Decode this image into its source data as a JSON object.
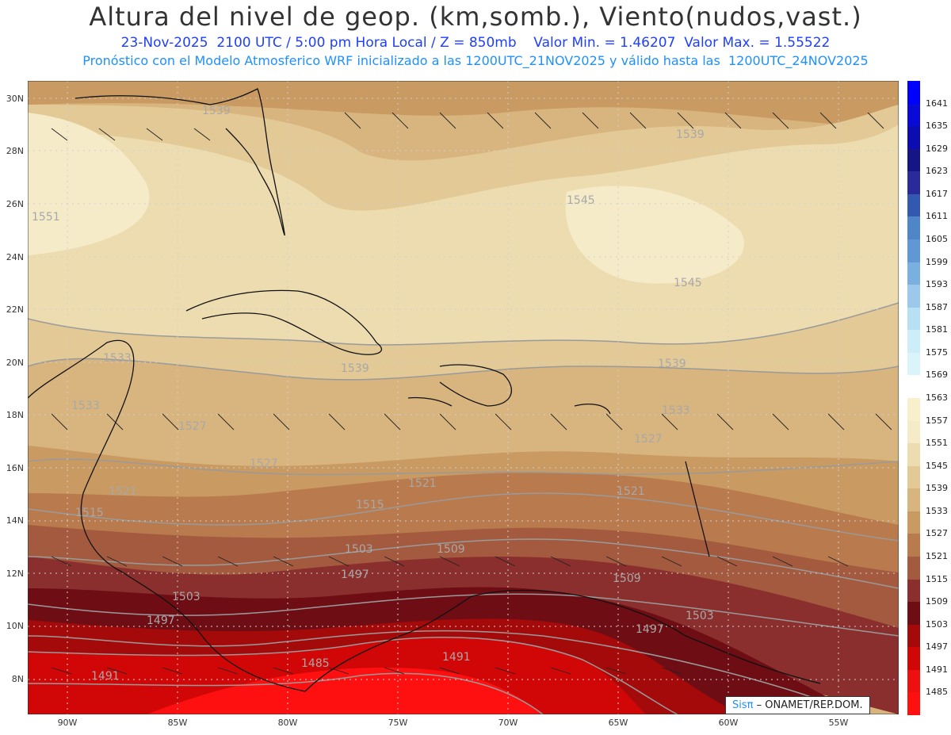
{
  "header": {
    "title": "Altura del nivel de geop. (km,somb.), Viento(nudos,vast.)",
    "line1": "23-Nov-2025  2100 UTC / 5:00 pm Hora Local / Z = 850mb    Valor Min. = 1.46207  Valor Max. = 1.55522",
    "line2": "Pronóstico con el Modelo Atmosferico WRF inicializado a las 1200UTC_21NOV2025 y válido hasta las  1200UTC_24NOV2025"
  },
  "axes": {
    "lat_labels": [
      "30N",
      "28N",
      "26N",
      "24N",
      "22N",
      "20N",
      "18N",
      "16N",
      "14N",
      "12N",
      "10N",
      "8N"
    ],
    "lon_labels": [
      "90W",
      "85W",
      "80W",
      "75W",
      "70W",
      "65W",
      "60W",
      "55W"
    ]
  },
  "contour_labels": [
    "1539",
    "1551",
    "1545",
    "1539",
    "1545",
    "1533",
    "1539",
    "1539",
    "1533",
    "1527",
    "1527",
    "1533",
    "1527",
    "1521",
    "1521",
    "1521",
    "1515",
    "1515",
    "1503",
    "1509",
    "1509",
    "1497",
    "1503",
    "1503",
    "1497",
    "1497",
    "1491",
    "1485",
    "1491"
  ],
  "colorbar": {
    "levels": [
      "1641",
      "1635",
      "1629",
      "1623",
      "1617",
      "1611",
      "1605",
      "1599",
      "1593",
      "1587",
      "1581",
      "1575",
      "1569",
      "1563",
      "1557",
      "1551",
      "1545",
      "1539",
      "1533",
      "1527",
      "1521",
      "1515",
      "1509",
      "1503",
      "1497",
      "1491",
      "1485"
    ],
    "colors": [
      "#0000ff",
      "#0a0ad8",
      "#0c0cb0",
      "#151585",
      "#2a2a9a",
      "#3358b0",
      "#4f86c8",
      "#5f98d4",
      "#7ab0e0",
      "#9cc8ec",
      "#b8e0f4",
      "#cdeef9",
      "#d9f4fb",
      "#ffffff",
      "#f8efcd",
      "#f5ebc9",
      "#ecdcaf",
      "#e2c996",
      "#d8b57e",
      "#c99a62",
      "#b97b4d",
      "#a45a3e",
      "#8a2f2d",
      "#6e0d14",
      "#a50a0a",
      "#d10707",
      "#ee1010",
      "#ff1010"
    ]
  },
  "credit": {
    "sis": "Sisπ",
    "text": " – ONAMET/REP.DOM."
  }
}
